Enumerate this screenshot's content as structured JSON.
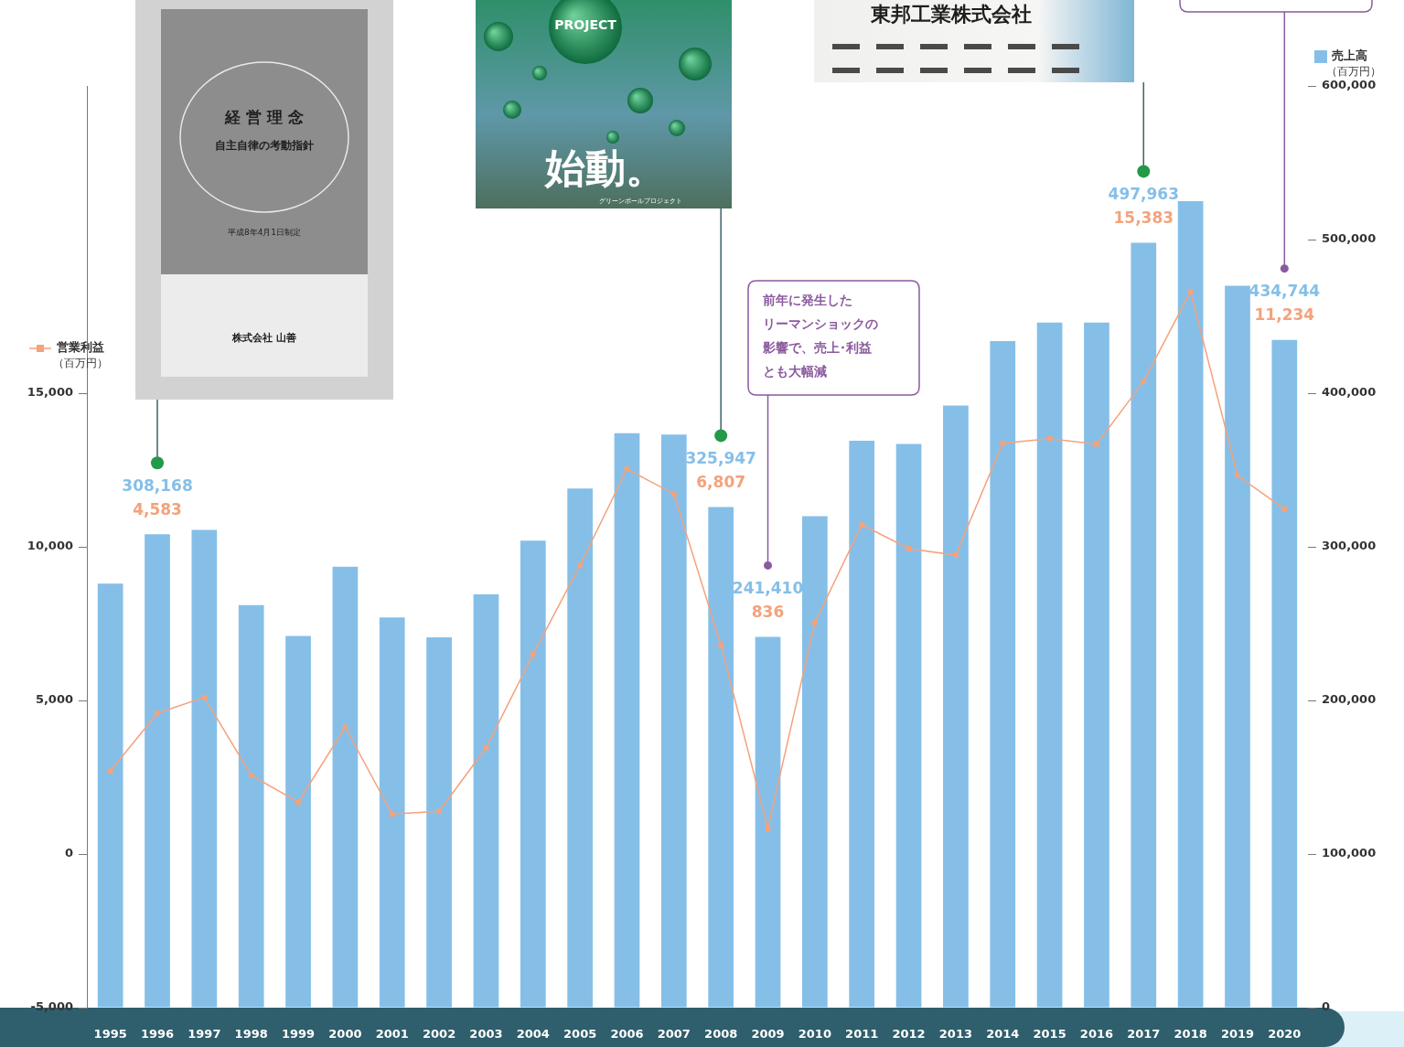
{
  "chart_data": {
    "type": "bar",
    "categories": [
      "1995",
      "1996",
      "1997",
      "1998",
      "1999",
      "2000",
      "2001",
      "2002",
      "2003",
      "2004",
      "2005",
      "2006",
      "2007",
      "2008",
      "2009",
      "2010",
      "2011",
      "2012",
      "2013",
      "2014",
      "2015",
      "2016",
      "2017",
      "2018",
      "2019",
      "2020"
    ],
    "series": [
      {
        "name": "売上高（百万円）",
        "type": "bar",
        "color": "#85bfe8",
        "axis": "y2",
        "values": [
          276000,
          308168,
          311000,
          262000,
          242000,
          287000,
          254000,
          241000,
          269000,
          304000,
          338000,
          374000,
          373000,
          325947,
          241410,
          320000,
          369000,
          367000,
          392000,
          434000,
          446000,
          446000,
          497963,
          525000,
          470000,
          434744
        ],
        "value_labels": [
          null,
          "308,168",
          null,
          null,
          null,
          null,
          null,
          null,
          null,
          null,
          null,
          null,
          null,
          "325,947",
          "241,410",
          null,
          null,
          null,
          null,
          null,
          null,
          null,
          "497,963",
          null,
          null,
          "434,744"
        ]
      },
      {
        "name": "営業利益（百万円）",
        "type": "line",
        "color": "#f4a27c",
        "marker": "square",
        "values": [
          2700,
          4583,
          5100,
          2560,
          1690,
          4130,
          1300,
          1390,
          3460,
          6500,
          9400,
          12530,
          11720,
          6807,
          836,
          7530,
          10720,
          9940,
          9730,
          13370,
          13520,
          13340,
          15383,
          18310,
          12320,
          11234
        ],
        "value_labels": [
          null,
          "4,583",
          null,
          null,
          null,
          null,
          null,
          null,
          null,
          null,
          null,
          null,
          null,
          "6,807",
          "836",
          null,
          null,
          null,
          null,
          null,
          null,
          null,
          "15,383",
          null,
          null,
          "11,234"
        ]
      }
    ],
    "ylim": [
      -5000,
      25000
    ],
    "yticks": [
      {
        "value": -5000,
        "label": "-5,000"
      },
      0,
      {
        "value": 5000,
        "label": "5,000"
      },
      {
        "value": 10000,
        "label": "10,000"
      },
      {
        "value": 15000,
        "label": "15,000"
      }
    ],
    "y2lim": [
      0,
      600000
    ],
    "y2ticks": [
      0,
      {
        "value": 100000,
        "label": "100,000"
      },
      {
        "value": 200000,
        "label": "200,000"
      },
      {
        "value": 300000,
        "label": "300,000"
      },
      {
        "value": 400000,
        "label": "400,000"
      },
      {
        "value": 500000,
        "label": "500,000"
      },
      {
        "value": 600000,
        "label": "600,000"
      }
    ],
    "grid": false,
    "annotations": [
      {
        "category": "1996",
        "kind": "photo",
        "lines": [
          "経営理念",
          "自主自律の考動指針",
          "平成8年4月1日制定",
          "株式会社 山善"
        ]
      },
      {
        "category": "2008",
        "kind": "photo",
        "lines": [
          "PROJECT",
          "始動。",
          "グリーンボールプロジェクト"
        ]
      },
      {
        "category": "2017",
        "kind": "photo",
        "lines": [
          "東邦工業株式会社"
        ]
      },
      {
        "category": "2009",
        "kind": "note",
        "lines": [
          "前年に発生した",
          "リーマンショックの",
          "影響で、売上･利益",
          "とも大幅減"
        ]
      },
      {
        "category": "2020",
        "kind": "note"
      }
    ]
  }
}
